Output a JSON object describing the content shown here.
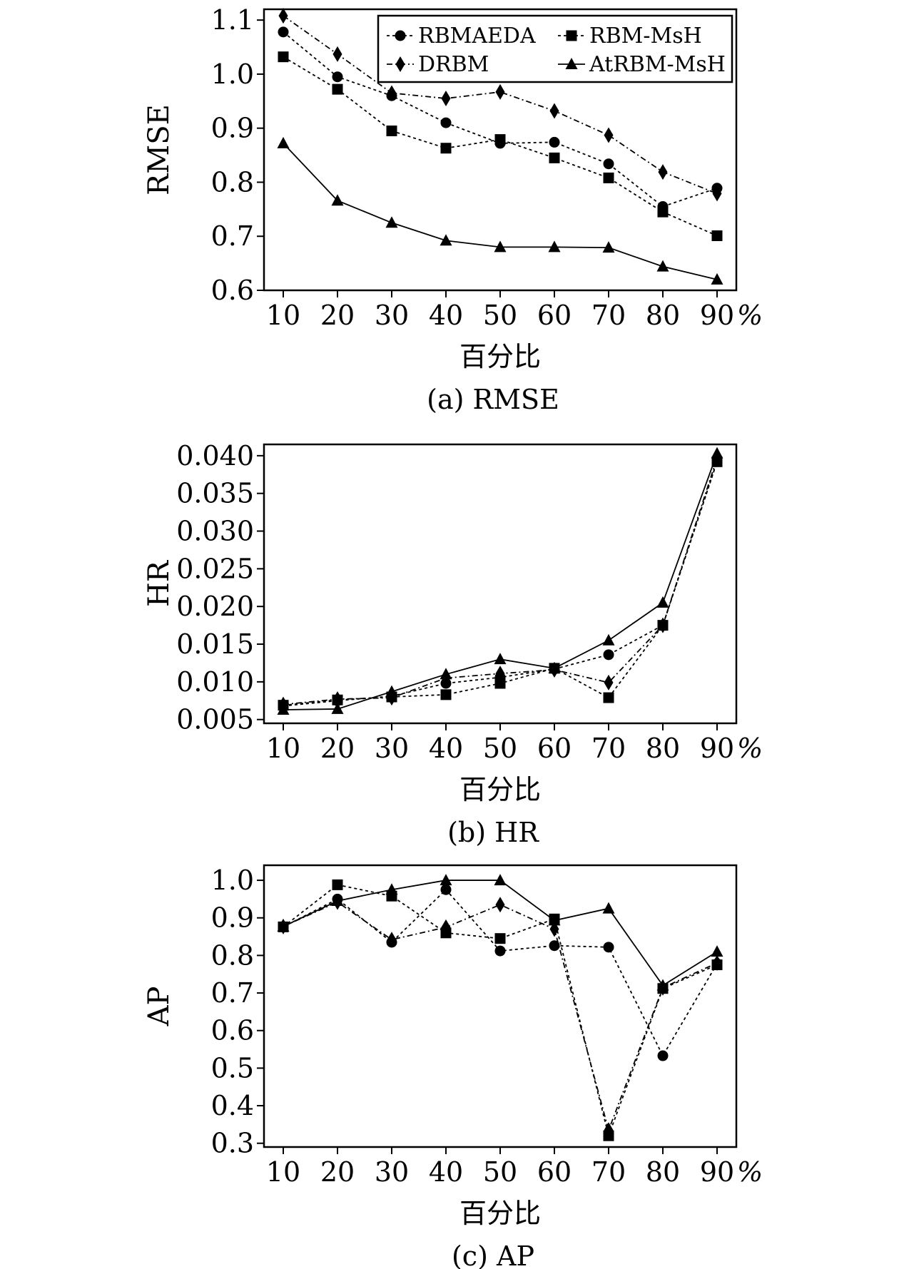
{
  "legend": {
    "entries": [
      {
        "label": "RBMAEDA",
        "marker": "circle",
        "dash": "4,4"
      },
      {
        "label": "RBM-MsH",
        "marker": "square",
        "dash": "4,4"
      },
      {
        "label": "DRBM",
        "marker": "diamond",
        "dash": "8,4,2,4"
      },
      {
        "label": "AtRBM-MsH",
        "marker": "triangle",
        "dash": ""
      }
    ]
  },
  "chart_data": [
    {
      "type": "line",
      "caption": "(a) RMSE",
      "ylabel": "RMSE",
      "xlabel": "百分比",
      "x": [
        10,
        20,
        30,
        40,
        50,
        60,
        70,
        80,
        90
      ],
      "x_unit": "%",
      "ylim": [
        0.6,
        1.12
      ],
      "yticks": [
        0.6,
        0.7,
        0.8,
        0.9,
        1.0,
        1.1
      ],
      "ytick_labels": [
        "0.6",
        "0.7",
        "0.8",
        "0.9",
        "1.0",
        "1.1"
      ],
      "show_legend": true,
      "legend_position": "top-right",
      "series": [
        {
          "name": "RBMAEDA",
          "values": [
            1.078,
            0.995,
            0.96,
            0.91,
            0.872,
            0.874,
            0.834,
            0.755,
            0.789
          ]
        },
        {
          "name": "RBM-MsH",
          "values": [
            1.032,
            0.972,
            0.895,
            0.863,
            0.879,
            0.845,
            0.808,
            0.745,
            0.701
          ]
        },
        {
          "name": "DRBM",
          "values": [
            1.108,
            1.037,
            0.965,
            0.955,
            0.967,
            0.932,
            0.887,
            0.819,
            0.779
          ]
        },
        {
          "name": "AtRBM-MsH",
          "values": [
            0.872,
            0.766,
            0.725,
            0.692,
            0.68,
            0.68,
            0.679,
            0.644,
            0.62
          ]
        }
      ]
    },
    {
      "type": "line",
      "caption": "(b) HR",
      "ylabel": "HR",
      "xlabel": "百分比",
      "x": [
        10,
        20,
        30,
        40,
        50,
        60,
        70,
        80,
        90
      ],
      "x_unit": "%",
      "ylim": [
        0.0045,
        0.0415
      ],
      "yticks": [
        0.005,
        0.01,
        0.015,
        0.02,
        0.025,
        0.03,
        0.035,
        0.04
      ],
      "ytick_labels": [
        "0.005",
        "0.010",
        "0.015",
        "0.020",
        "0.025",
        "0.030",
        "0.035",
        "0.040"
      ],
      "show_legend": false,
      "series": [
        {
          "name": "RBMAEDA",
          "values": [
            0.0068,
            0.0075,
            0.0081,
            0.0098,
            0.0106,
            0.0117,
            0.0136,
            0.0175,
            0.0393
          ]
        },
        {
          "name": "RBM-MsH",
          "values": [
            0.0069,
            0.0076,
            0.008,
            0.0083,
            0.0098,
            0.0118,
            0.0079,
            0.0175,
            0.0392
          ]
        },
        {
          "name": "DRBM",
          "values": [
            0.007,
            0.0077,
            0.0079,
            0.0105,
            0.0111,
            0.0116,
            0.0099,
            0.0175,
            0.0397
          ]
        },
        {
          "name": "AtRBM-MsH",
          "values": [
            0.0063,
            0.0064,
            0.0087,
            0.011,
            0.013,
            0.0118,
            0.0155,
            0.0205,
            0.0403
          ]
        }
      ]
    },
    {
      "type": "line",
      "caption": "(c) AP",
      "ylabel": "AP",
      "xlabel": "百分比",
      "x": [
        10,
        20,
        30,
        40,
        50,
        60,
        70,
        80,
        90
      ],
      "x_unit": "%",
      "ylim": [
        0.29,
        1.04
      ],
      "yticks": [
        0.3,
        0.4,
        0.5,
        0.6,
        0.7,
        0.8,
        0.9,
        1.0
      ],
      "ytick_labels": [
        "0.3",
        "0.4",
        "0.5",
        "0.6",
        "0.7",
        "0.8",
        "0.9",
        "1.0"
      ],
      "show_legend": false,
      "series": [
        {
          "name": "RBMAEDA",
          "values": [
            0.876,
            0.95,
            0.835,
            0.975,
            0.812,
            0.826,
            0.822,
            0.533,
            0.778
          ]
        },
        {
          "name": "RBM-MsH",
          "values": [
            0.876,
            0.988,
            0.958,
            0.86,
            0.845,
            0.897,
            0.32,
            0.712,
            0.775
          ]
        },
        {
          "name": "DRBM",
          "values": [
            0.877,
            0.942,
            0.842,
            0.875,
            0.935,
            0.87,
            0.335,
            0.714,
            0.78
          ]
        },
        {
          "name": "AtRBM-MsH",
          "values": [
            0.877,
            0.945,
            0.975,
            1.0,
            1.0,
            0.893,
            0.925,
            0.72,
            0.81
          ]
        }
      ]
    }
  ]
}
